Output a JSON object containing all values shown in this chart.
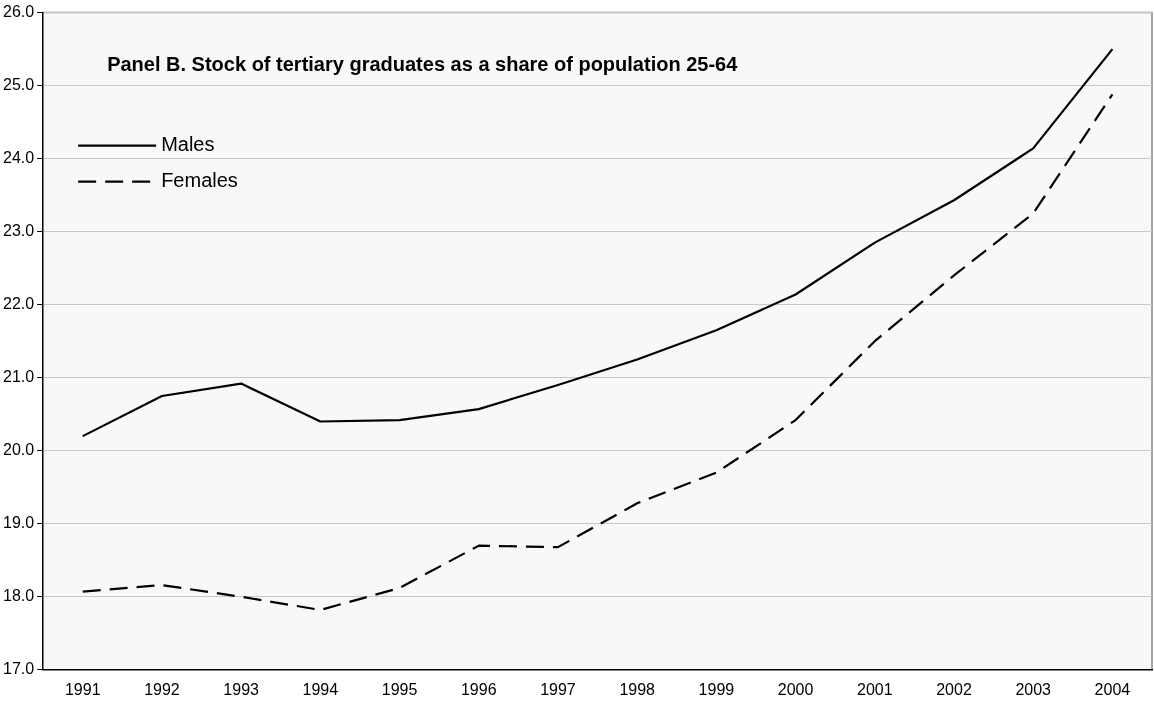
{
  "chart_data": {
    "type": "line",
    "title": "Panel B. Stock of tertiary graduates as a share of population 25-64",
    "categories": [
      "1991",
      "1992",
      "1993",
      "1994",
      "1995",
      "1996",
      "1997",
      "1998",
      "1999",
      "2000",
      "2001",
      "2002",
      "2003",
      "2004"
    ],
    "series": [
      {
        "name": "Males",
        "color": "#000000",
        "line_style": "solid",
        "values": [
          20.2,
          20.75,
          20.92,
          20.4,
          20.42,
          20.57,
          20.9,
          21.25,
          21.65,
          22.14,
          22.85,
          23.43,
          24.14,
          25.5
        ]
      },
      {
        "name": "Females",
        "color": "#000000",
        "line_style": "dashed",
        "values": [
          18.07,
          18.16,
          18.0,
          17.82,
          18.12,
          18.7,
          18.68,
          19.28,
          19.7,
          20.42,
          21.5,
          22.4,
          23.25,
          24.88
        ]
      }
    ],
    "ylim": [
      17,
      26
    ],
    "yticks": [
      {
        "value": 17,
        "label": "17.0"
      },
      {
        "value": 18,
        "label": "18.0"
      },
      {
        "value": 19,
        "label": "19.0"
      },
      {
        "value": 20,
        "label": "20.0"
      },
      {
        "value": 21,
        "label": "21.0"
      },
      {
        "value": 22,
        "label": "22.0"
      },
      {
        "value": 23,
        "label": "23.0"
      },
      {
        "value": 24,
        "label": "24.0"
      },
      {
        "value": 25,
        "label": "25.0"
      },
      {
        "value": 26,
        "label": "26.0"
      }
    ],
    "grid": "y",
    "legend": "top left",
    "marker": "none"
  }
}
